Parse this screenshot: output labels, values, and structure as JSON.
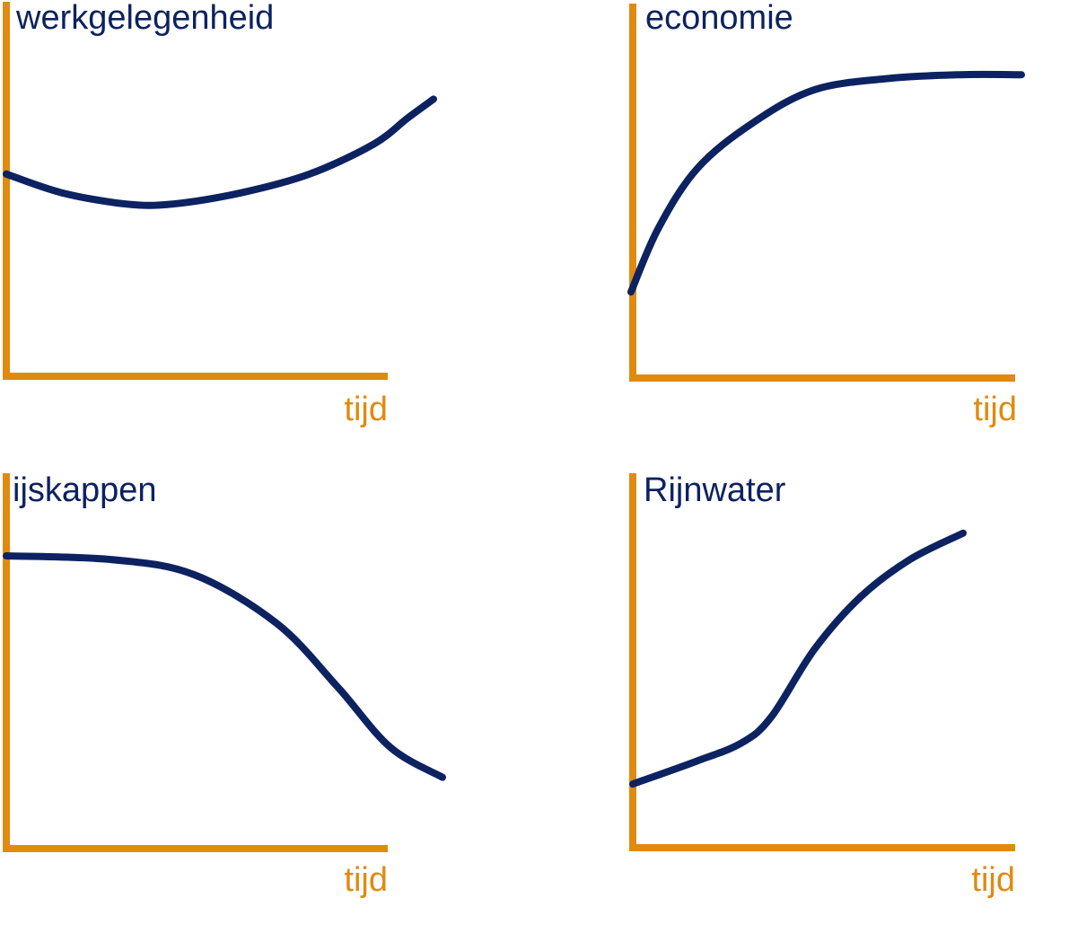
{
  "colors": {
    "axis": "#e08a0f",
    "curve": "#0d2260",
    "title": "#0d2260"
  },
  "chart_data": [
    {
      "type": "line",
      "title": "werkgelegenheid",
      "xlabel": "tijd",
      "ylabel": "",
      "grid": false,
      "xlim": [
        0,
        1
      ],
      "ylim": [
        0,
        1
      ],
      "series": [
        {
          "x": [
            0,
            0.13,
            0.28,
            0.39,
            0.55,
            0.71,
            0.86,
            0.94,
            1.0
          ],
          "y": [
            0.54,
            0.49,
            0.46,
            0.46,
            0.49,
            0.54,
            0.62,
            0.69,
            0.74
          ]
        }
      ]
    },
    {
      "type": "line",
      "title": "economie",
      "xlabel": "tijd",
      "ylabel": "",
      "grid": false,
      "xlim": [
        0,
        1
      ],
      "ylim": [
        0,
        1
      ],
      "series": [
        {
          "x": [
            0,
            0.07,
            0.17,
            0.31,
            0.47,
            0.66,
            0.84,
            1.0
          ],
          "y": [
            0.23,
            0.4,
            0.56,
            0.68,
            0.77,
            0.8,
            0.81,
            0.81
          ]
        }
      ]
    },
    {
      "type": "line",
      "title": "ijskappen",
      "xlabel": "tijd",
      "ylabel": "",
      "grid": false,
      "xlim": [
        0,
        1
      ],
      "ylim": [
        0,
        1
      ],
      "series": [
        {
          "x": [
            0,
            0.24,
            0.43,
            0.62,
            0.76,
            0.88,
            1.0
          ],
          "y": [
            0.78,
            0.77,
            0.73,
            0.6,
            0.43,
            0.27,
            0.19
          ]
        }
      ]
    },
    {
      "type": "line",
      "title": "Rijnwater",
      "xlabel": "tijd",
      "ylabel": "",
      "grid": false,
      "xlim": [
        0,
        1
      ],
      "ylim": [
        0,
        1
      ],
      "series": [
        {
          "x": [
            0,
            0.19,
            0.33,
            0.42,
            0.55,
            0.69,
            0.84,
            1.0
          ],
          "y": [
            0.17,
            0.23,
            0.28,
            0.35,
            0.53,
            0.67,
            0.77,
            0.84
          ]
        }
      ]
    }
  ]
}
